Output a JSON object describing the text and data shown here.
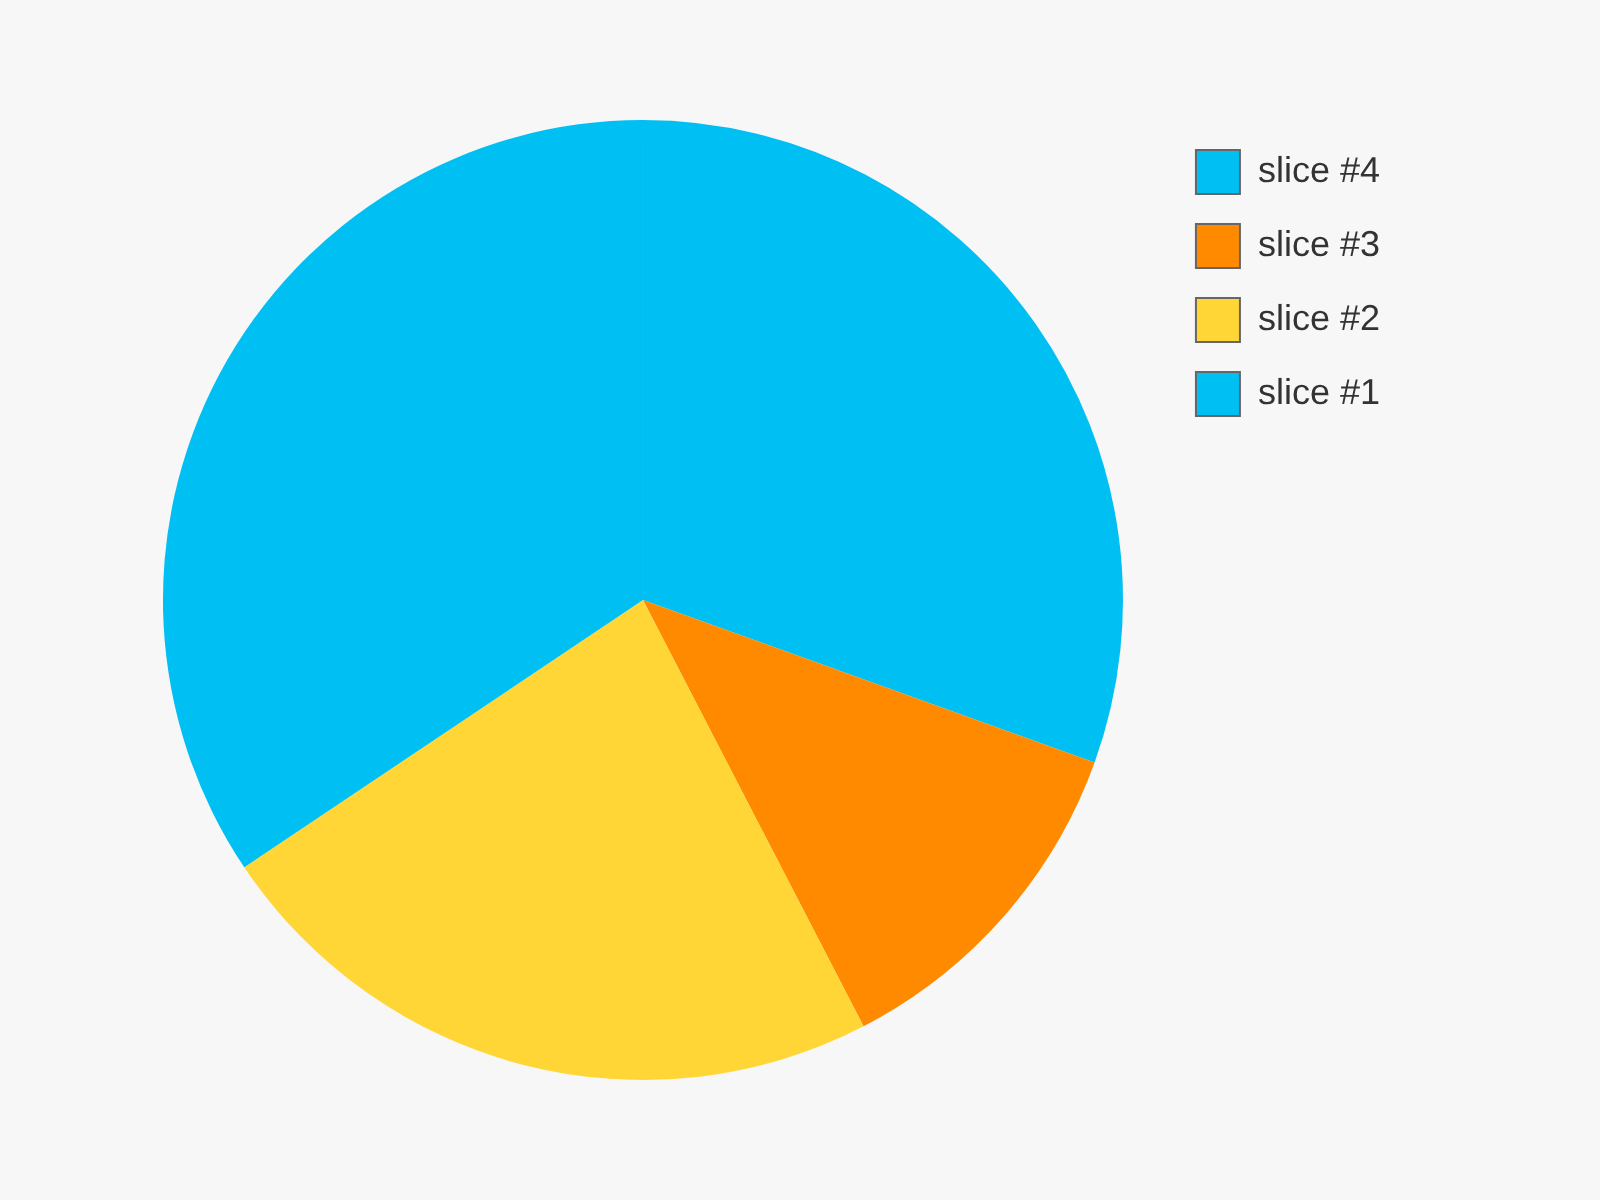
{
  "chart_data": {
    "type": "pie",
    "categories": [
      "slice #4",
      "slice #3",
      "slice #2",
      "slice #1"
    ],
    "values": [
      30.5,
      11.9,
      23.2,
      34.4
    ],
    "colors": [
      "#00bff3",
      "#ff8a00",
      "#ffd635",
      "#00bff3"
    ],
    "legend": "top right"
  }
}
